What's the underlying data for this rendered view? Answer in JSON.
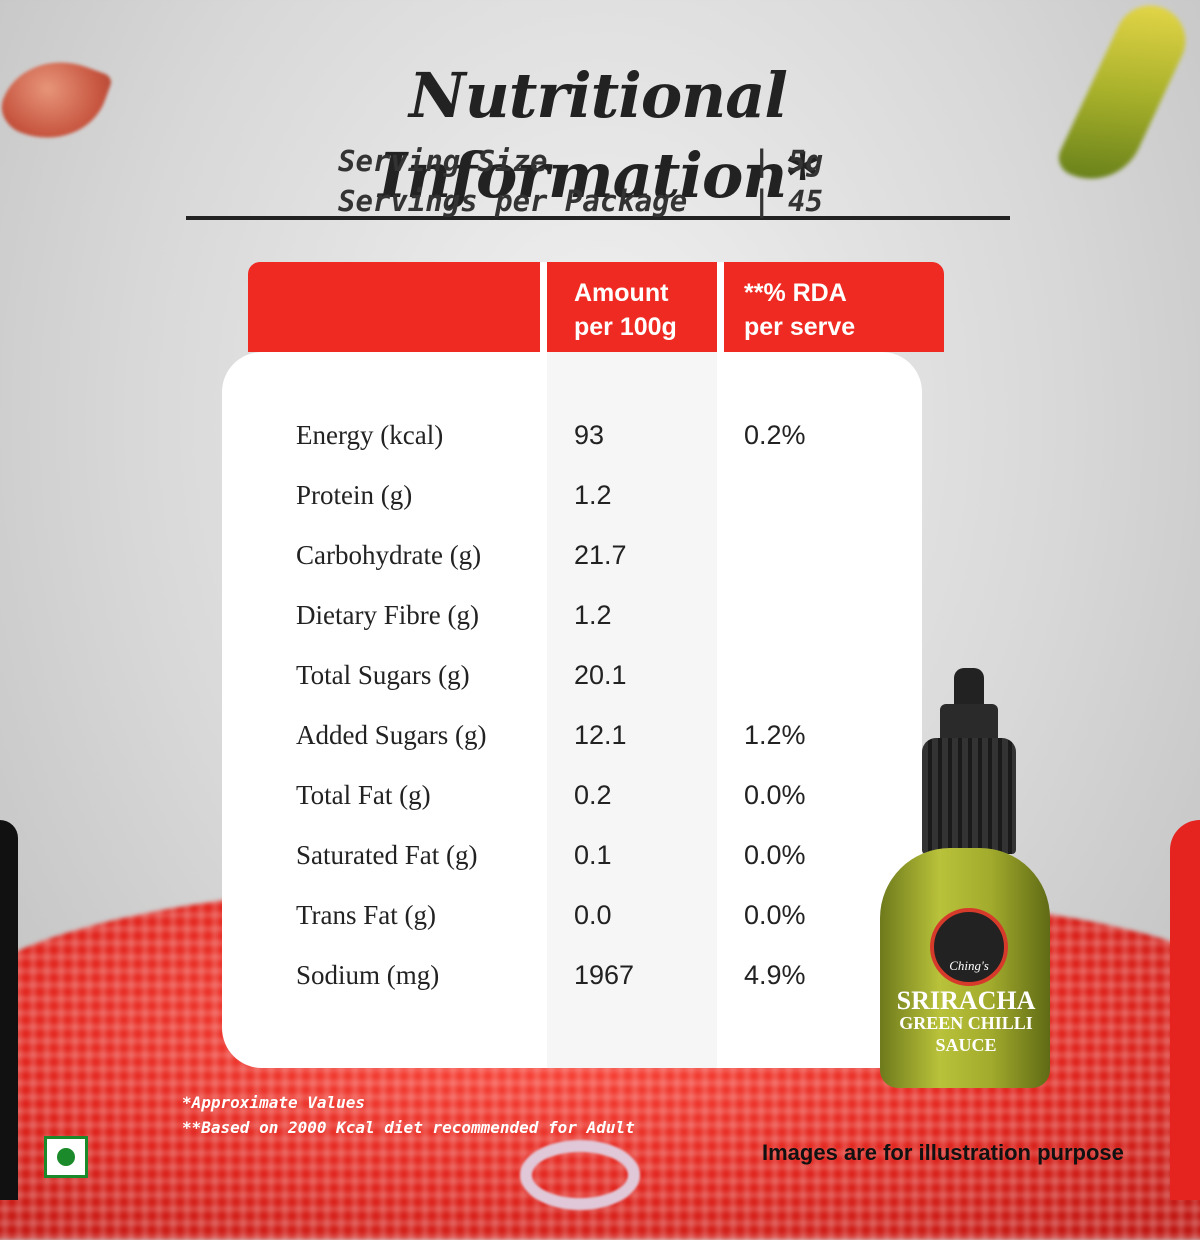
{
  "title": "Nutritional Information*",
  "serving": [
    {
      "label": "Serving Size",
      "sep": "|",
      "value": "5g"
    },
    {
      "label": "Servings per Package",
      "sep": "|",
      "value": "45"
    }
  ],
  "table": {
    "headers": {
      "amount": "Amount\nper 100g",
      "rda": "**% RDA\nper serve"
    },
    "rows": [
      {
        "name": "Energy (kcal)",
        "amount": "93",
        "rda": "0.2%"
      },
      {
        "name": "Protein (g)",
        "amount": "1.2",
        "rda": ""
      },
      {
        "name": "Carbohydrate (g)",
        "amount": "21.7",
        "rda": ""
      },
      {
        "name": "Dietary Fibre (g)",
        "amount": "1.2",
        "rda": ""
      },
      {
        "name": "Total Sugars (g)",
        "amount": "20.1",
        "rda": ""
      },
      {
        "name": "Added Sugars (g)",
        "amount": "12.1",
        "rda": "1.2%"
      },
      {
        "name": "Total Fat (g)",
        "amount": "0.2",
        "rda": "0.0%"
      },
      {
        "name": "Saturated Fat (g)",
        "amount": "0.1",
        "rda": "0.0%"
      },
      {
        "name": "Trans Fat (g)",
        "amount": "0.0",
        "rda": "0.0%"
      },
      {
        "name": "Sodium (mg)",
        "amount": "1967",
        "rda": "4.9%"
      }
    ]
  },
  "product": {
    "logo": "Ching's",
    "name_line1": "SRIRACHA",
    "name_line2": "GREEN CHILLI",
    "name_line3": "SAUCE"
  },
  "footnotes": [
    "*Approximate Values",
    "**Based on 2000 Kcal diet recommended for Adult"
  ],
  "disclaimer": "Images are for illustration purpose",
  "colors": {
    "accent_red": "#ef2a22",
    "veg_green": "#1a8a2a"
  }
}
